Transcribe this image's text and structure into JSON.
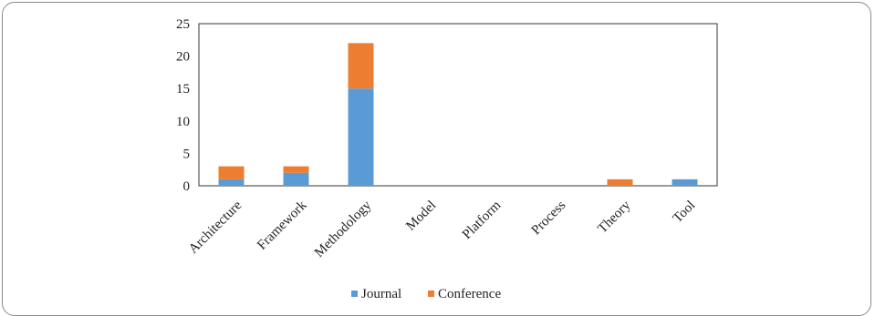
{
  "chart_data": {
    "type": "bar",
    "stacked": true,
    "categories": [
      "Architecture",
      "Framework",
      "Methodology",
      "Model",
      "Platform",
      "Process",
      "Theory",
      "Tool"
    ],
    "series": [
      {
        "name": "Journal",
        "color": "#5b9bd5",
        "values": [
          1,
          2,
          15,
          0,
          0,
          0,
          0,
          1
        ]
      },
      {
        "name": "Conference",
        "color": "#ed7d31",
        "values": [
          2,
          1,
          7,
          0,
          0,
          0,
          1,
          0
        ]
      }
    ],
    "yticks": [
      "0",
      "5",
      "10",
      "15",
      "20",
      "25"
    ],
    "ylim": [
      0,
      25
    ],
    "grid": false,
    "legend_position": "bottom"
  }
}
